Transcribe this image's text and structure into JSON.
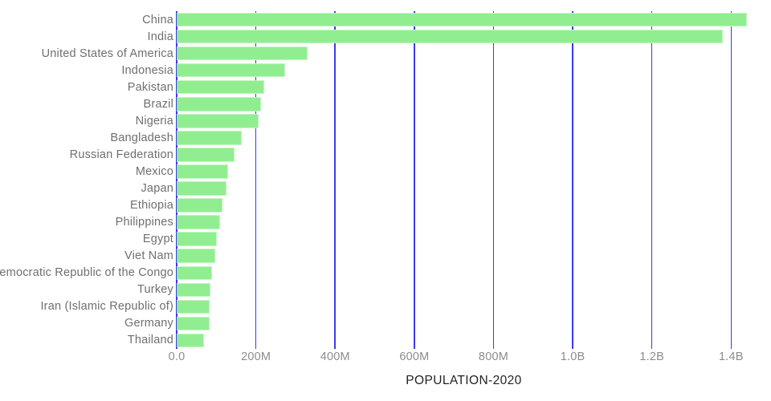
{
  "chart_data": {
    "type": "bar",
    "orientation": "horizontal",
    "title": "",
    "xlabel": "POPULATION-2020",
    "ylabel": "",
    "unit": "people (values in millions)",
    "categories": [
      "China",
      "India",
      "United States of America",
      "Indonesia",
      "Pakistan",
      "Brazil",
      "Nigeria",
      "Bangladesh",
      "Russian Federation",
      "Mexico",
      "Japan",
      "Ethiopia",
      "Philippines",
      "Egypt",
      "Viet Nam",
      "Democratic Republic of the Congo",
      "Turkey",
      "Iran (Islamic Republic of)",
      "Germany",
      "Thailand"
    ],
    "values": [
      1439.3,
      1380.0,
      331.0,
      273.5,
      220.9,
      212.6,
      206.1,
      164.7,
      145.9,
      128.9,
      126.5,
      115.0,
      109.6,
      102.3,
      97.3,
      89.6,
      84.3,
      84.0,
      83.8,
      69.8
    ],
    "x_ticks": [
      {
        "value": 0,
        "label": "0.0"
      },
      {
        "value": 200,
        "label": "200M"
      },
      {
        "value": 400,
        "label": "400M"
      },
      {
        "value": 600,
        "label": "600M"
      },
      {
        "value": 800,
        "label": "800M"
      },
      {
        "value": 1000,
        "label": "1.0B"
      },
      {
        "value": 1200,
        "label": "1.2B"
      },
      {
        "value": 1400,
        "label": "1.4B"
      }
    ],
    "xlim": [
      0,
      1450
    ],
    "grid": "vertical gridlines only, drawn behind bars",
    "legend": "none",
    "colors": {
      "bar_fill": "#90ee90",
      "gridline": "#3a3aee",
      "category_label": "#6f6f6f",
      "tick_label": "#8c8c8c",
      "axis_title": "#222222",
      "background": "#ffffff"
    }
  }
}
